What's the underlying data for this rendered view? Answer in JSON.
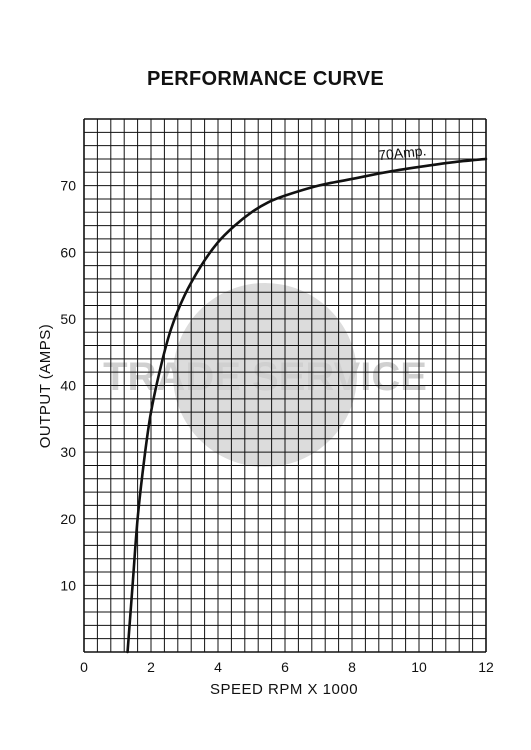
{
  "chart_data": {
    "type": "line",
    "title": "PERFORMANCE CURVE",
    "xlabel": "SPEED RPM X 1000",
    "ylabel": "OUTPUT (AMPS)",
    "xlim": [
      0,
      12
    ],
    "ylim": [
      0,
      80
    ],
    "xticks": [
      0,
      2,
      4,
      6,
      8,
      10,
      12
    ],
    "yticks": [
      10,
      20,
      30,
      40,
      50,
      60,
      70
    ],
    "grid": true,
    "series": [
      {
        "name": "70Amp.",
        "x": [
          1.3,
          1.45,
          1.6,
          1.8,
          2.0,
          2.3,
          2.6,
          3.0,
          3.5,
          4.0,
          4.5,
          5.0,
          5.5,
          6.0,
          7.0,
          8.0,
          9.0,
          10.0,
          11.0,
          12.0
        ],
        "y": [
          0,
          10,
          20,
          29,
          36,
          43,
          48.5,
          53.5,
          58,
          61.5,
          64,
          66,
          67.5,
          68.5,
          70,
          71,
          72,
          72.8,
          73.5,
          74
        ]
      }
    ],
    "watermark": "TRADE SERVICE",
    "colors": {
      "line": "#111111",
      "grid": "#111111",
      "watermark": "#d8d8d8"
    }
  }
}
